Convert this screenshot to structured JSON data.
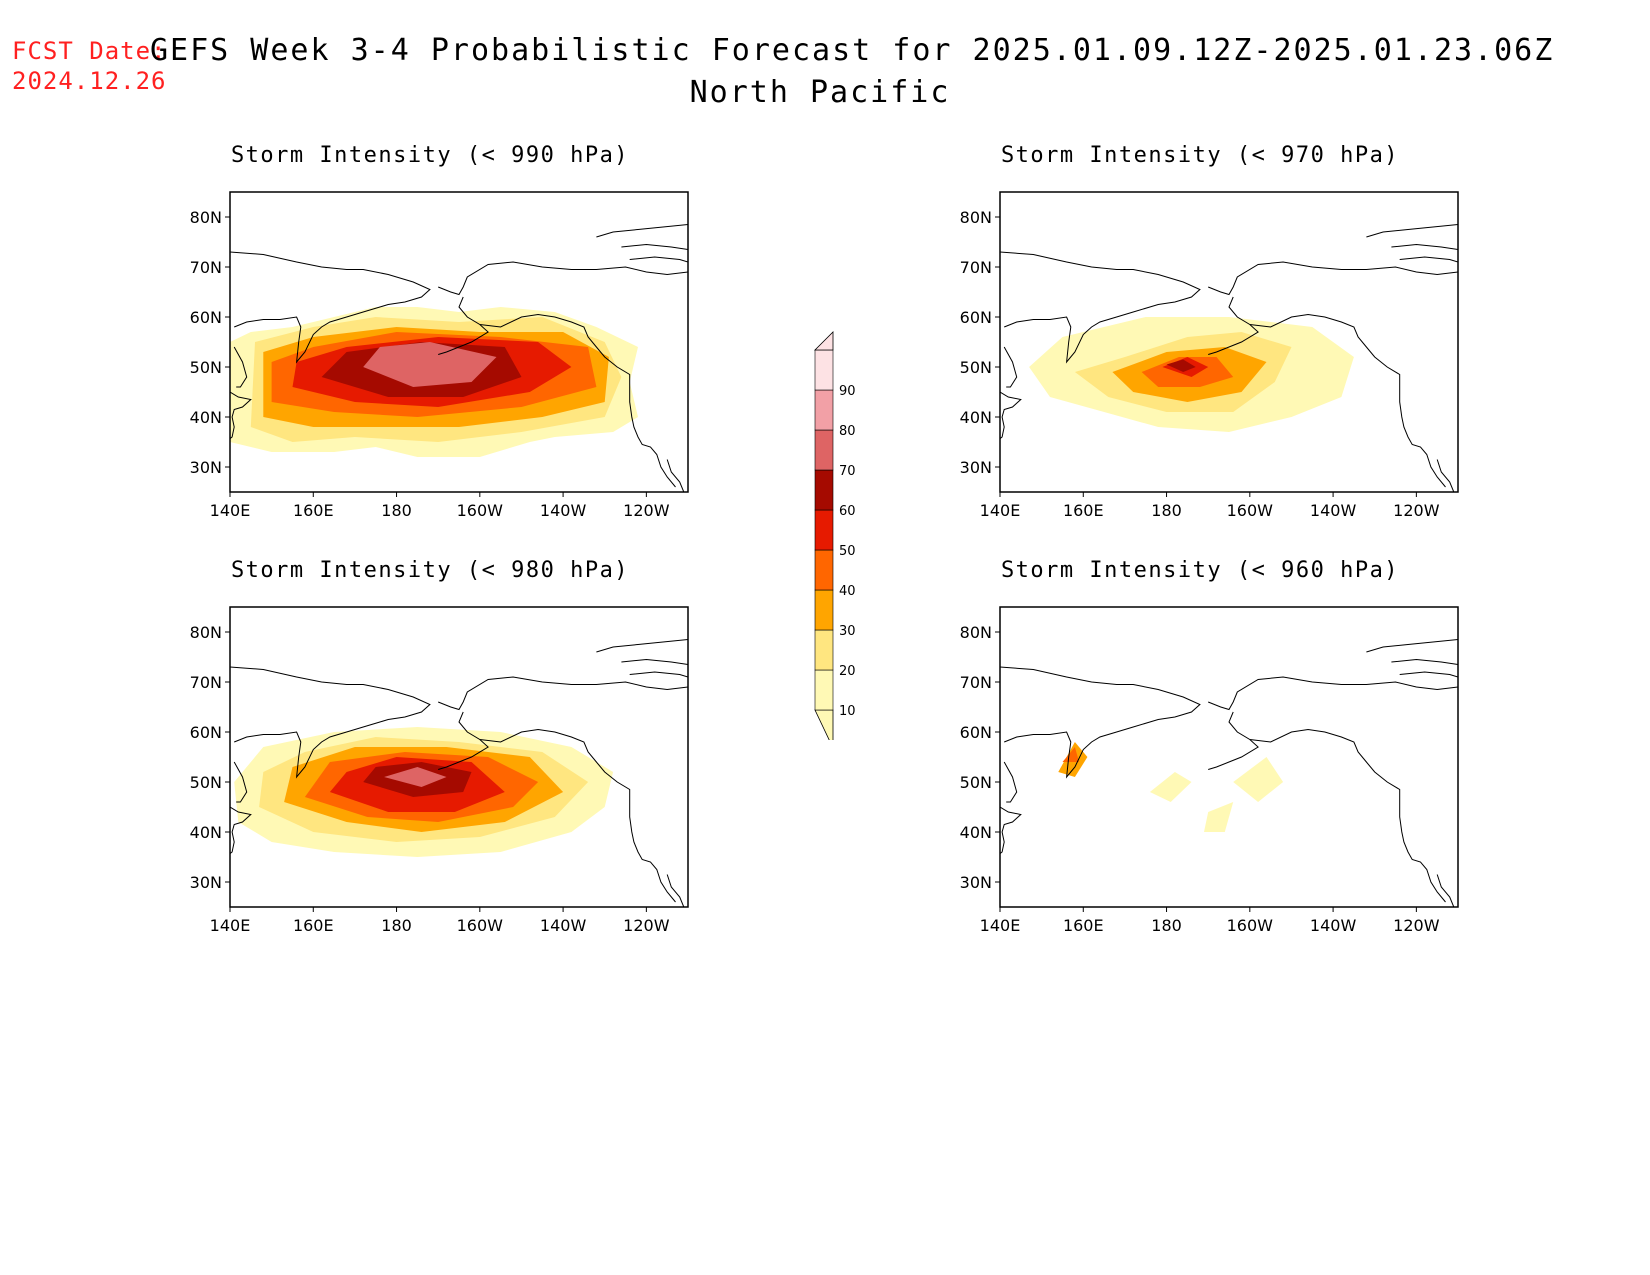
{
  "header": {
    "fcst_label": "FCST Date:",
    "fcst_date": "2024.12.26",
    "title_line1": "GEFS Week 3-4 Probabilistic Forecast for 2025.01.09.12Z-2025.01.23.06Z",
    "title_line2": "North Pacific"
  },
  "map_axes": {
    "lat_ticks": [
      "80N",
      "70N",
      "60N",
      "50N",
      "40N",
      "30N"
    ],
    "lon_ticks": [
      "140E",
      "160E",
      "180",
      "160W",
      "140W",
      "120W"
    ],
    "lat_range": [
      25,
      85
    ],
    "lon_range": [
      140,
      250
    ]
  },
  "panels": [
    {
      "title": "Storm Intensity (< 990 hPa)",
      "level": "high"
    },
    {
      "title": "Storm Intensity (< 970 hPa)",
      "level": "low"
    },
    {
      "title": "Storm Intensity (< 980 hPa)",
      "level": "mid"
    },
    {
      "title": "Storm Intensity (< 960 hPa)",
      "level": "verylow"
    }
  ],
  "colorbar": {
    "levels": [
      "10",
      "20",
      "30",
      "40",
      "50",
      "60",
      "70",
      "80",
      "90"
    ],
    "colors": [
      "#fff9b5",
      "#ffe680",
      "#ffa500",
      "#ff6600",
      "#e61a00",
      "#a50a00",
      "#de6464",
      "#f2a0a6",
      "#fde2e4"
    ]
  }
}
